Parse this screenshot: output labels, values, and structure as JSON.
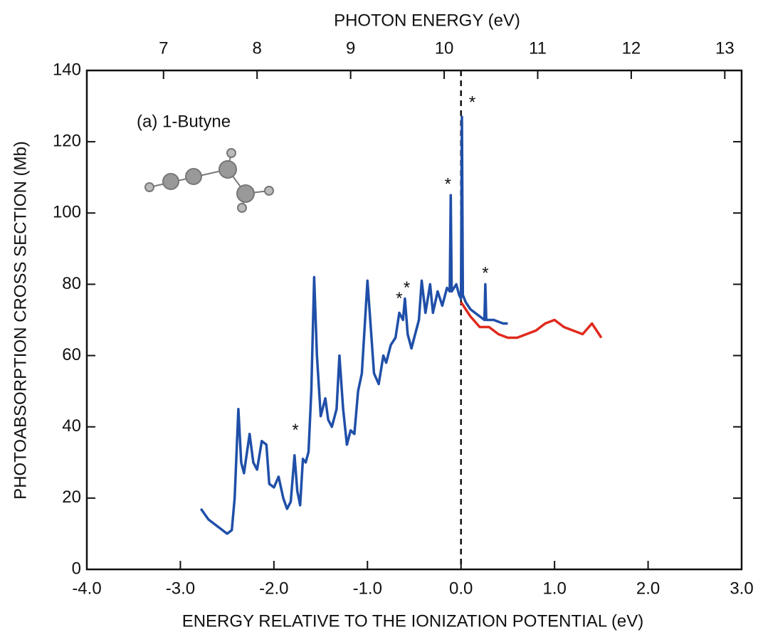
{
  "chart_data": {
    "type": "line",
    "top_axis_label": "PHOTON ENERGY  (eV)",
    "xlabel": "ENERGY RELATIVE TO THE IONIZATION POTENTIAL  (eV)",
    "ylabel": "PHOTOABSORPTION CROSS SECTION  (Mb)",
    "annotation_title": "(a) 1-Butyne",
    "xlim": [
      -4.0,
      3.0
    ],
    "xticks": [
      {
        "value": -4,
        "label": "-4.0"
      },
      {
        "value": -3,
        "label": "-3.0"
      },
      {
        "value": -2,
        "label": "-2.0"
      },
      {
        "value": -1,
        "label": "-1.0"
      },
      {
        "value": 0,
        "label": "0.0"
      },
      {
        "value": 1,
        "label": "1.0"
      },
      {
        "value": 2,
        "label": "2.0"
      },
      {
        "value": 3,
        "label": "3.0"
      }
    ],
    "x2lim": [
      6.18,
      13.18
    ],
    "x2ticks": [
      7,
      8,
      9,
      10,
      11,
      12,
      13
    ],
    "ylim": [
      0,
      140
    ],
    "yticks": [
      0,
      20,
      40,
      60,
      80,
      100,
      120,
      140
    ],
    "reference_line_x": 0,
    "series": [
      {
        "color": "#1f4fa8",
        "x": [
          -2.78,
          -2.7,
          -2.6,
          -2.5,
          -2.45,
          -2.42,
          -2.38,
          -2.35,
          -2.32,
          -2.26,
          -2.22,
          -2.18,
          -2.13,
          -2.08,
          -2.05,
          -2.0,
          -1.95,
          -1.9,
          -1.86,
          -1.82,
          -1.78,
          -1.75,
          -1.72,
          -1.69,
          -1.66,
          -1.63,
          -1.6,
          -1.57,
          -1.54,
          -1.5,
          -1.45,
          -1.42,
          -1.38,
          -1.33,
          -1.3,
          -1.26,
          -1.22,
          -1.18,
          -1.14,
          -1.1,
          -1.06,
          -1.0,
          -0.97,
          -0.93,
          -0.88,
          -0.83,
          -0.8,
          -0.75,
          -0.7,
          -0.66,
          -0.62,
          -0.6,
          -0.57,
          -0.53,
          -0.5,
          -0.45,
          -0.42,
          -0.38,
          -0.33,
          -0.3,
          -0.25,
          -0.2,
          -0.15,
          -0.12,
          -0.11,
          -0.1,
          -0.05,
          -0.02,
          0.0,
          0.01,
          0.02,
          0.05,
          0.1,
          0.15,
          0.2,
          0.25,
          0.26,
          0.27,
          0.35,
          0.45,
          0.5
        ],
        "values": [
          17,
          14,
          12,
          10,
          11,
          20,
          45,
          30,
          27,
          38,
          30,
          28,
          36,
          35,
          24,
          23,
          26,
          20,
          17,
          19,
          32,
          22,
          18,
          31,
          30,
          33,
          50,
          82,
          60,
          43,
          48,
          42,
          40,
          45,
          60,
          45,
          35,
          39,
          38,
          50,
          55,
          81,
          70,
          55,
          52,
          60,
          58,
          63,
          65,
          72,
          70,
          76,
          66,
          62,
          65,
          70,
          81,
          72,
          80,
          72,
          78,
          74,
          79,
          78,
          105,
          78,
          80,
          77,
          76,
          127,
          77,
          75,
          73,
          72,
          71,
          70,
          80,
          70,
          70,
          69,
          69
        ]
      },
      {
        "color": "#e02a1e",
        "x": [
          0.0,
          0.1,
          0.2,
          0.3,
          0.4,
          0.5,
          0.6,
          0.7,
          0.8,
          0.9,
          1.0,
          1.1,
          1.2,
          1.3,
          1.4,
          1.5
        ],
        "values": [
          75,
          71,
          68,
          68,
          66,
          65,
          65,
          66,
          67,
          69,
          70,
          68,
          67,
          66,
          69,
          65
        ]
      }
    ],
    "annotations": [
      {
        "text": "*",
        "x": -1.77,
        "y": 40
      },
      {
        "text": "*",
        "x": -0.66,
        "y": 77
      },
      {
        "text": "*",
        "x": -0.58,
        "y": 80
      },
      {
        "text": "*",
        "x": -0.14,
        "y": 109
      },
      {
        "text": "*",
        "x": 0.26,
        "y": 84
      },
      {
        "text": "*",
        "x": 0.12,
        "y": 132
      }
    ]
  }
}
